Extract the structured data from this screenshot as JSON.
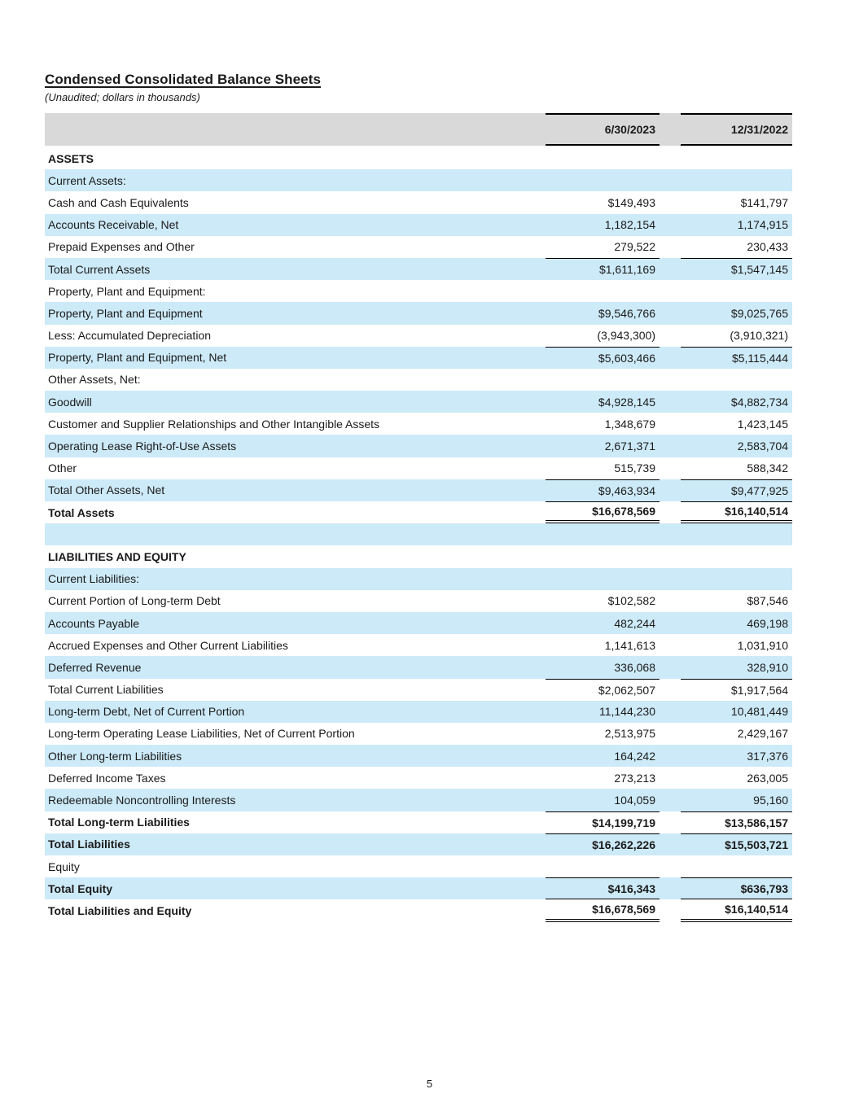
{
  "page": {
    "title": "Condensed Consolidated Balance Sheets",
    "subtitle": "(Unaudited; dollars in thousands)",
    "page_number": "5"
  },
  "colors": {
    "row_highlight_blue": "#cdeaf8",
    "header_gray": "#d9d9d9",
    "text": "#1a1a1a",
    "border": "#000000"
  },
  "table": {
    "columns": [
      "6/30/2023",
      "12/31/2022"
    ],
    "rows": [
      {
        "label": "ASSETS",
        "v1": "",
        "v2": "",
        "indent": 0,
        "bg": "white",
        "bold": true,
        "bt": false,
        "bb": ""
      },
      {
        "label": "Current Assets:",
        "v1": "",
        "v2": "",
        "indent": 1,
        "bg": "blue",
        "bold": false,
        "bt": false,
        "bb": ""
      },
      {
        "label": "Cash and Cash Equivalents",
        "v1": "$149,493",
        "v2": "$141,797",
        "indent": 2,
        "bg": "white",
        "bold": false,
        "bt": false,
        "bb": ""
      },
      {
        "label": "Accounts Receivable, Net",
        "v1": "1,182,154",
        "v2": "1,174,915",
        "indent": 2,
        "bg": "blue",
        "bold": false,
        "bt": false,
        "bb": ""
      },
      {
        "label": "Prepaid Expenses and Other",
        "v1": "279,522",
        "v2": "230,433",
        "indent": 2,
        "bg": "white",
        "bold": false,
        "bt": false,
        "bb": ""
      },
      {
        "label": "Total Current Assets",
        "v1": "$1,611,169",
        "v2": "$1,547,145",
        "indent": 3,
        "bg": "blue",
        "bold": false,
        "bt": true,
        "bb": ""
      },
      {
        "label": "Property, Plant and Equipment:",
        "v1": "",
        "v2": "",
        "indent": 1,
        "bg": "white",
        "bold": false,
        "bt": false,
        "bb": ""
      },
      {
        "label": "Property, Plant and Equipment",
        "v1": "$9,546,766",
        "v2": "$9,025,765",
        "indent": 2,
        "bg": "blue",
        "bold": false,
        "bt": false,
        "bb": ""
      },
      {
        "label": "Less: Accumulated Depreciation",
        "v1": "(3,943,300)",
        "v2": "(3,910,321)",
        "indent": 2,
        "bg": "white",
        "bold": false,
        "bt": false,
        "bb": ""
      },
      {
        "label": "Property, Plant and Equipment, Net",
        "v1": "$5,603,466",
        "v2": "$5,115,444",
        "indent": 3,
        "bg": "blue",
        "bold": false,
        "bt": true,
        "bb": ""
      },
      {
        "label": "Other Assets, Net:",
        "v1": "",
        "v2": "",
        "indent": 1,
        "bg": "white",
        "bold": false,
        "bt": false,
        "bb": ""
      },
      {
        "label": "Goodwill",
        "v1": "$4,928,145",
        "v2": "$4,882,734",
        "indent": 2,
        "bg": "blue",
        "bold": false,
        "bt": false,
        "bb": ""
      },
      {
        "label": "Customer and Supplier Relationships and Other Intangible Assets",
        "v1": "1,348,679",
        "v2": "1,423,145",
        "indent": 2,
        "bg": "white",
        "bold": false,
        "bt": false,
        "bb": ""
      },
      {
        "label": "Operating Lease Right-of-Use Assets",
        "v1": "2,671,371",
        "v2": "2,583,704",
        "indent": 2,
        "bg": "blue",
        "bold": false,
        "bt": false,
        "bb": ""
      },
      {
        "label": "Other",
        "v1": "515,739",
        "v2": "588,342",
        "indent": 2,
        "bg": "white",
        "bold": false,
        "bt": false,
        "bb": ""
      },
      {
        "label": "Total Other Assets, Net",
        "v1": "$9,463,934",
        "v2": "$9,477,925",
        "indent": 3,
        "bg": "blue",
        "bold": false,
        "bt": true,
        "bb": ""
      },
      {
        "label": "Total Assets",
        "v1": "$16,678,569",
        "v2": "$16,140,514",
        "indent": 3,
        "bg": "white",
        "bold": true,
        "bt": true,
        "bb": "double"
      },
      {
        "label": "",
        "v1": "",
        "v2": "",
        "indent": 0,
        "bg": "blue",
        "bold": false,
        "bt": false,
        "bb": ""
      },
      {
        "label": "LIABILITIES AND EQUITY",
        "v1": "",
        "v2": "",
        "indent": 0,
        "bg": "white",
        "bold": true,
        "bt": false,
        "bb": ""
      },
      {
        "label": "Current Liabilities:",
        "v1": "",
        "v2": "",
        "indent": 1,
        "bg": "blue",
        "bold": false,
        "bt": false,
        "bb": ""
      },
      {
        "label": "Current Portion of Long-term Debt",
        "v1": "$102,582",
        "v2": "$87,546",
        "indent": 2,
        "bg": "white",
        "bold": false,
        "bt": false,
        "bb": ""
      },
      {
        "label": "Accounts Payable",
        "v1": "482,244",
        "v2": "469,198",
        "indent": 2,
        "bg": "blue",
        "bold": false,
        "bt": false,
        "bb": ""
      },
      {
        "label": "Accrued Expenses and Other Current Liabilities",
        "v1": "1,141,613",
        "v2": "1,031,910",
        "indent": 2,
        "bg": "white",
        "bold": false,
        "bt": false,
        "bb": ""
      },
      {
        "label": "Deferred Revenue",
        "v1": "336,068",
        "v2": "328,910",
        "indent": 2,
        "bg": "blue",
        "bold": false,
        "bt": false,
        "bb": ""
      },
      {
        "label": "Total Current Liabilities",
        "v1": "$2,062,507",
        "v2": "$1,917,564",
        "indent": 3,
        "bg": "white",
        "bold": false,
        "bt": true,
        "bb": ""
      },
      {
        "label": "Long-term Debt, Net of Current Portion",
        "v1": "11,144,230",
        "v2": "10,481,449",
        "indent": 2,
        "bg": "blue",
        "bold": false,
        "bt": false,
        "bb": ""
      },
      {
        "label": "Long-term Operating Lease Liabilities, Net of Current Portion",
        "v1": "2,513,975",
        "v2": "2,429,167",
        "indent": 2,
        "bg": "white",
        "bold": false,
        "bt": false,
        "bb": ""
      },
      {
        "label": "Other Long-term Liabilities",
        "v1": "164,242",
        "v2": "317,376",
        "indent": 2,
        "bg": "blue",
        "bold": false,
        "bt": false,
        "bb": ""
      },
      {
        "label": "Deferred Income Taxes",
        "v1": "273,213",
        "v2": "263,005",
        "indent": 2,
        "bg": "white",
        "bold": false,
        "bt": false,
        "bb": ""
      },
      {
        "label": "Redeemable Noncontrolling Interests",
        "v1": "104,059",
        "v2": "95,160",
        "indent": 2,
        "bg": "blue",
        "bold": false,
        "bt": false,
        "bb": ""
      },
      {
        "label": "Total Long-term Liabilities",
        "v1": "$14,199,719",
        "v2": "$13,586,157",
        "indent": 3,
        "bg": "white",
        "bold": true,
        "bt": true,
        "bb": ""
      },
      {
        "label": "Total Liabilities",
        "v1": "$16,262,226",
        "v2": "$15,503,721",
        "indent": 3,
        "bg": "blue",
        "bold": true,
        "bt": true,
        "bb": ""
      },
      {
        "label": "Equity",
        "v1": "",
        "v2": "",
        "indent": 1,
        "bg": "white",
        "bold": false,
        "bt": false,
        "bb": ""
      },
      {
        "label": "Total Equity",
        "v1": "$416,343",
        "v2": "$636,793",
        "indent": 3,
        "bg": "blue",
        "bold": true,
        "bt": true,
        "bb": "single"
      },
      {
        "label": "Total Liabilities and Equity",
        "v1": "$16,678,569",
        "v2": "$16,140,514",
        "indent": 3,
        "bg": "white",
        "bold": true,
        "bt": false,
        "bb": "double"
      }
    ]
  }
}
